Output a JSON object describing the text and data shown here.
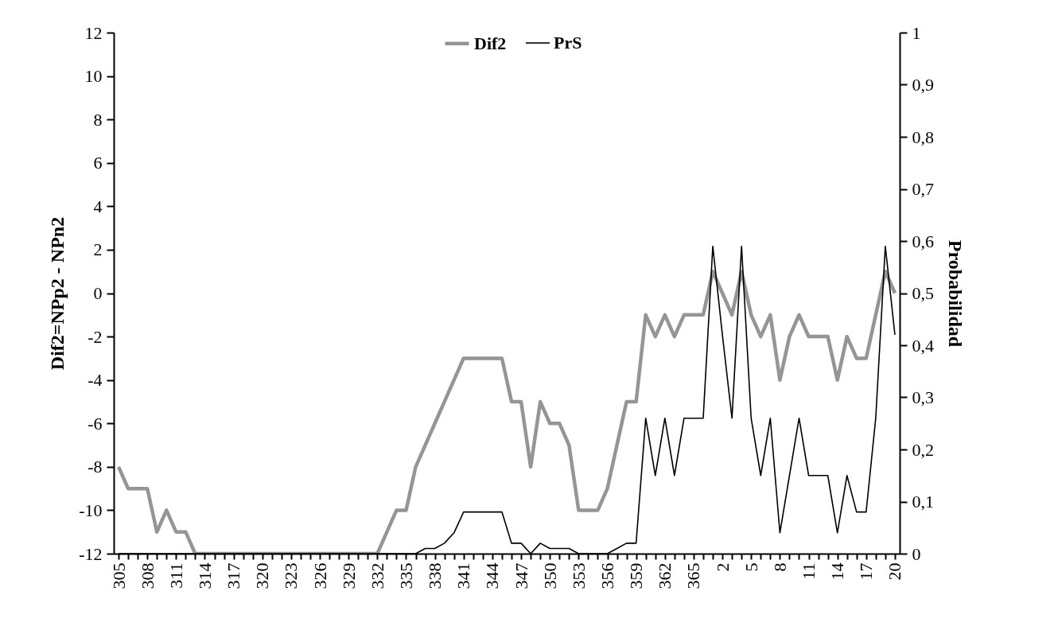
{
  "chart_data": {
    "type": "line",
    "categories": [
      "305",
      null,
      null,
      "308",
      null,
      null,
      "311",
      null,
      null,
      "314",
      null,
      null,
      "317",
      null,
      null,
      "320",
      null,
      null,
      "323",
      null,
      null,
      "326",
      null,
      null,
      "329",
      null,
      null,
      "332",
      null,
      null,
      "335",
      null,
      null,
      "338",
      null,
      null,
      "341",
      null,
      null,
      "344",
      null,
      null,
      "347",
      null,
      null,
      "350",
      null,
      null,
      "353",
      null,
      null,
      "356",
      null,
      null,
      "359",
      null,
      null,
      "362",
      null,
      null,
      "365",
      null,
      null,
      "2",
      null,
      null,
      "5",
      null,
      null,
      "8",
      null,
      null,
      "11",
      null,
      null,
      "14",
      null,
      null,
      "17",
      null,
      null,
      "20"
    ],
    "series": [
      {
        "name": "Dif2",
        "color": "#939598",
        "values": [
          -8,
          -9,
          -9,
          -9,
          -11,
          -10,
          -11,
          -11,
          -12,
          -12,
          -12,
          -12,
          -12,
          -12,
          -12,
          -12,
          -12,
          -12,
          -12,
          -12,
          -12,
          -12,
          -12,
          -12,
          -12,
          -12,
          -12,
          -12,
          -11,
          -10,
          -10,
          -8,
          -7,
          -6,
          -5,
          -4,
          -3,
          -3,
          -3,
          -3,
          -3,
          -5,
          -5,
          -8,
          -5,
          -6,
          -6,
          -7,
          -10,
          -10,
          -10,
          -9,
          -7,
          -5,
          -5,
          -1,
          -2,
          -1,
          -2,
          -1,
          -1,
          -1,
          1,
          0,
          -1,
          1,
          -1,
          -2,
          -1,
          -4,
          -2,
          -1,
          -2,
          -2,
          -2,
          -4,
          -2,
          -3,
          -3,
          -1,
          1,
          0
        ]
      },
      {
        "name": "PrS",
        "color": "#000000",
        "axis": "y2",
        "values": [
          0,
          0,
          0,
          0,
          0,
          0,
          0,
          0,
          0,
          0,
          0,
          0,
          0,
          0,
          0,
          0,
          0,
          0,
          0,
          0,
          0,
          0,
          0,
          0,
          0,
          0,
          0,
          0,
          0,
          0,
          0,
          0,
          0.01,
          0.01,
          0.02,
          0.04,
          0.08,
          0.08,
          0.08,
          0.08,
          0.08,
          0.02,
          0.02,
          0,
          0.02,
          0.01,
          0.01,
          0.01,
          0,
          0,
          0,
          0,
          0.01,
          0.02,
          0.02,
          0.26,
          0.15,
          0.26,
          0.15,
          0.26,
          0.26,
          0.26,
          0.59,
          0.42,
          0.26,
          0.59,
          0.26,
          0.15,
          0.26,
          0.04,
          0.15,
          0.26,
          0.15,
          0.15,
          0.15,
          0.04,
          0.15,
          0.08,
          0.08,
          0.26,
          0.59,
          0.42
        ]
      }
    ],
    "ylabel": "Dif2=NPp2 - NPn2",
    "y2label": "Probabilidad",
    "ylim": [
      -12,
      12
    ],
    "yticks": [
      -12,
      -10,
      -8,
      -6,
      -4,
      -2,
      0,
      2,
      4,
      6,
      8,
      10,
      12
    ],
    "y2lim": [
      0,
      1
    ],
    "y2ticks": [
      0,
      {
        "value": 0.1,
        "label": "0,1"
      },
      {
        "value": 0.2,
        "label": "0,2"
      },
      {
        "value": 0.3,
        "label": "0,3"
      },
      {
        "value": 0.4,
        "label": "0,4"
      },
      {
        "value": 0.5,
        "label": "0,5"
      },
      {
        "value": 0.6,
        "label": "0,6"
      },
      {
        "value": 0.7,
        "label": "0,7"
      },
      {
        "value": 0.8,
        "label": "0,8"
      },
      {
        "value": 0.9,
        "label": "0,9"
      },
      1
    ],
    "grid": false,
    "legend": "top"
  }
}
